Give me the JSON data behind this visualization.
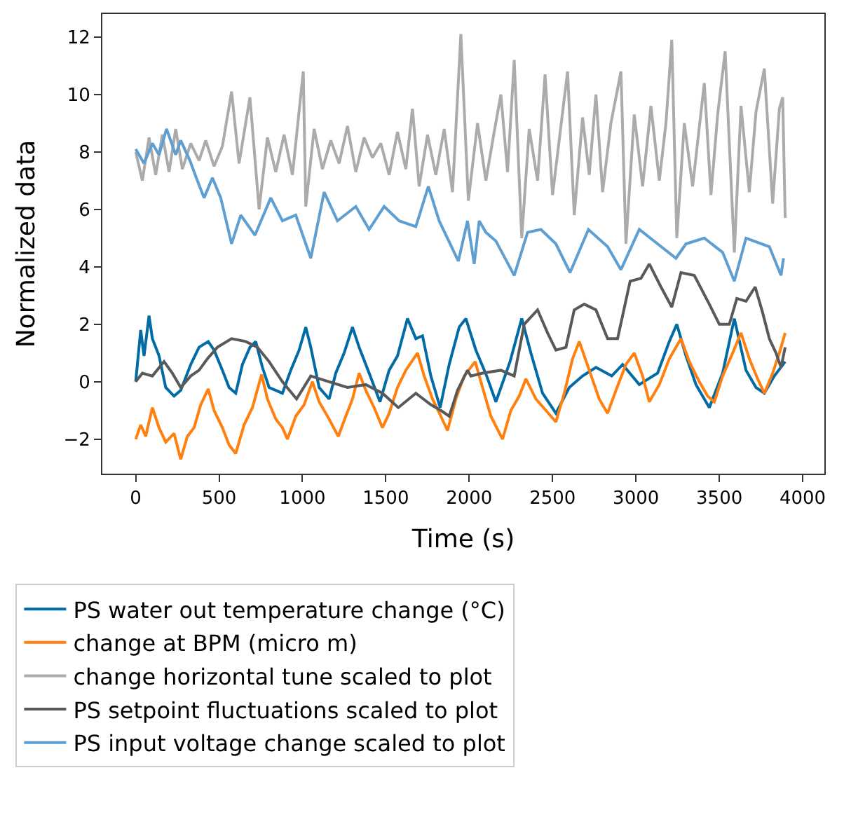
{
  "chart_data": {
    "type": "line",
    "xlabel": "Time (s)",
    "ylabel": "Normalized data",
    "xlim": [
      -200,
      4130
    ],
    "xticks": [
      0,
      500,
      1000,
      1500,
      2000,
      2500,
      3000,
      3500,
      4000
    ],
    "ylim": [
      -3.2,
      12.8
    ],
    "yticks": [
      -2,
      0,
      2,
      4,
      6,
      8,
      10,
      12
    ],
    "legend": "bottom",
    "marker": "none",
    "line_style": "solid",
    "series": [
      {
        "name": "PS water out temperature change (°C)",
        "color": "#006ba4",
        "x": [
          0,
          30,
          50,
          80,
          100,
          140,
          180,
          230,
          270,
          330,
          380,
          435,
          470,
          520,
          560,
          600,
          640,
          685,
          720,
          760,
          800,
          840,
          880,
          930,
          980,
          1020,
          1050,
          1100,
          1160,
          1200,
          1250,
          1300,
          1340,
          1400,
          1465,
          1520,
          1570,
          1630,
          1680,
          1720,
          1770,
          1826,
          1880,
          1940,
          1980,
          2040,
          2105,
          2160,
          2245,
          2315,
          2370,
          2440,
          2520,
          2600,
          2680,
          2760,
          2855,
          2920,
          3020,
          3130,
          3200,
          3245,
          3300,
          3360,
          3440,
          3520,
          3590,
          3660,
          3720,
          3770,
          3830,
          3895
        ],
        "values": [
          0.0,
          1.8,
          0.9,
          2.3,
          1.5,
          0.9,
          -0.2,
          -0.5,
          -0.3,
          0.6,
          1.2,
          1.4,
          1.1,
          0.4,
          -0.2,
          -0.4,
          0.6,
          1.2,
          1.4,
          0.5,
          -0.2,
          -0.3,
          -0.4,
          0.4,
          1.1,
          1.9,
          1.2,
          -0.2,
          -0.6,
          0.3,
          1.0,
          1.9,
          1.2,
          0.3,
          -0.7,
          0.4,
          0.9,
          2.2,
          1.5,
          1.6,
          0.2,
          -0.9,
          0.6,
          1.9,
          2.2,
          1.1,
          0.2,
          -0.7,
          0.7,
          2.2,
          1.0,
          -0.4,
          -1.1,
          -0.2,
          0.2,
          0.5,
          0.2,
          0.6,
          -0.1,
          0.3,
          1.4,
          2.0,
          0.9,
          -0.1,
          -0.9,
          0.3,
          2.2,
          0.4,
          -0.2,
          -0.4,
          0.2,
          0.7
        ]
      },
      {
        "name": "change at BPM (micro m)",
        "color": "#ff800e",
        "x": [
          0,
          30,
          60,
          100,
          140,
          180,
          230,
          270,
          310,
          350,
          390,
          435,
          470,
          520,
          560,
          600,
          650,
          700,
          755,
          790,
          840,
          880,
          910,
          960,
          1010,
          1060,
          1100,
          1160,
          1215,
          1260,
          1300,
          1340,
          1380,
          1430,
          1480,
          1520,
          1570,
          1620,
          1690,
          1730,
          1780,
          1830,
          1870,
          1920,
          1970,
          2036,
          2080,
          2130,
          2200,
          2250,
          2300,
          2340,
          2400,
          2460,
          2520,
          2570,
          2620,
          2660,
          2720,
          2780,
          2830,
          2880,
          2940,
          2990,
          3040,
          3080,
          3140,
          3200,
          3270,
          3320,
          3380,
          3430,
          3470,
          3520,
          3580,
          3630,
          3680,
          3730,
          3770,
          3820,
          3860,
          3895
        ],
        "values": [
          -2.0,
          -1.5,
          -1.9,
          -0.9,
          -1.6,
          -2.1,
          -1.8,
          -2.7,
          -1.9,
          -1.6,
          -0.8,
          -0.25,
          -1.0,
          -1.6,
          -2.2,
          -2.5,
          -1.5,
          -0.9,
          0.25,
          -0.6,
          -1.3,
          -1.6,
          -2.0,
          -1.2,
          -0.8,
          0.0,
          -0.7,
          -1.3,
          -1.9,
          -1.2,
          -0.6,
          0.3,
          -0.3,
          -0.9,
          -1.6,
          -1.1,
          -0.2,
          0.4,
          1.0,
          0.2,
          -0.6,
          -1.2,
          -1.7,
          -0.6,
          0.2,
          0.7,
          -0.2,
          -1.2,
          -2.0,
          -1.0,
          -0.5,
          0.1,
          -0.6,
          -1.0,
          -1.4,
          -0.4,
          0.8,
          1.4,
          0.4,
          -0.6,
          -1.1,
          -0.3,
          0.6,
          1.0,
          0.2,
          -0.7,
          -0.1,
          0.8,
          1.5,
          0.7,
          0.0,
          -0.5,
          -0.7,
          0.2,
          1.0,
          1.7,
          0.8,
          0.1,
          -0.4,
          0.3,
          1.0,
          1.7
        ]
      },
      {
        "name": "change horizontal tune scaled to plot",
        "color": "#ababab",
        "x": [
          0,
          40,
          80,
          120,
          160,
          200,
          240,
          280,
          330,
          380,
          420,
          470,
          520,
          575,
          620,
          685,
          740,
          790,
          840,
          890,
          940,
          1005,
          1020,
          1070,
          1120,
          1170,
          1220,
          1270,
          1320,
          1370,
          1420,
          1470,
          1520,
          1570,
          1620,
          1660,
          1700,
          1750,
          1800,
          1850,
          1900,
          1950,
          1995,
          2050,
          2100,
          2150,
          2190,
          2230,
          2270,
          2315,
          2360,
          2410,
          2455,
          2500,
          2550,
          2590,
          2630,
          2680,
          2720,
          2760,
          2800,
          2850,
          2910,
          2940,
          2990,
          3040,
          3090,
          3140,
          3180,
          3215,
          3245,
          3290,
          3340,
          3410,
          3450,
          3490,
          3535,
          3590,
          3630,
          3680,
          3720,
          3770,
          3820,
          3860,
          3880,
          3895
        ],
        "values": [
          8.0,
          7.0,
          8.5,
          7.2,
          8.6,
          7.3,
          8.8,
          7.4,
          8.3,
          7.7,
          8.4,
          7.5,
          8.2,
          10.1,
          7.6,
          9.9,
          6.0,
          8.5,
          7.3,
          8.6,
          7.2,
          10.8,
          6.1,
          8.8,
          7.4,
          8.4,
          7.6,
          8.9,
          7.3,
          8.5,
          7.8,
          8.3,
          7.2,
          8.7,
          7.4,
          9.5,
          6.8,
          8.6,
          7.2,
          8.8,
          6.6,
          12.1,
          6.3,
          9.0,
          7.0,
          8.7,
          10.0,
          7.3,
          11.2,
          5.0,
          8.8,
          7.0,
          10.7,
          6.5,
          8.9,
          10.8,
          5.8,
          9.2,
          7.2,
          10.0,
          6.6,
          9.0,
          10.8,
          4.8,
          9.3,
          6.8,
          9.6,
          7.0,
          9.0,
          11.9,
          5.0,
          9.0,
          6.8,
          10.4,
          6.5,
          9.3,
          11.5,
          4.5,
          9.6,
          6.6,
          9.4,
          10.9,
          6.2,
          9.5,
          9.9,
          5.7
        ]
      },
      {
        "name": "PS setpoint fluctuations scaled to plot",
        "color": "#595959",
        "x": [
          0,
          40,
          100,
          170,
          220,
          270,
          330,
          380,
          430,
          490,
          575,
          660,
          730,
          800,
          880,
          965,
          1050,
          1160,
          1270,
          1380,
          1480,
          1575,
          1680,
          1770,
          1830,
          1880,
          1930,
          1990,
          2010,
          2080,
          2190,
          2270,
          2330,
          2410,
          2470,
          2520,
          2580,
          2630,
          2690,
          2760,
          2830,
          2890,
          2965,
          3030,
          3080,
          3150,
          3215,
          3270,
          3350,
          3440,
          3500,
          3560,
          3605,
          3660,
          3715,
          3760,
          3800,
          3840,
          3870,
          3895
        ],
        "values": [
          0.0,
          0.3,
          0.2,
          0.7,
          0.3,
          -0.2,
          0.2,
          0.4,
          0.8,
          1.2,
          1.5,
          1.4,
          1.2,
          0.7,
          0.0,
          -0.6,
          0.2,
          0.0,
          -0.2,
          -0.1,
          -0.4,
          -0.9,
          -0.4,
          -0.8,
          -1.0,
          -1.2,
          -0.3,
          0.4,
          0.2,
          0.3,
          0.4,
          0.2,
          2.0,
          2.5,
          1.7,
          1.1,
          1.2,
          2.5,
          2.7,
          2.5,
          1.5,
          1.5,
          3.5,
          3.6,
          4.1,
          3.3,
          2.6,
          3.8,
          3.7,
          2.7,
          2.0,
          2.0,
          2.9,
          2.8,
          3.3,
          2.4,
          1.5,
          1.0,
          0.5,
          1.2
        ]
      },
      {
        "name": "PS input voltage change scaled to plot",
        "color": "#5f9ed1",
        "x": [
          0,
          50,
          100,
          140,
          185,
          240,
          270,
          325,
          370,
          410,
          460,
          510,
          575,
          630,
          715,
          810,
          880,
          960,
          1050,
          1130,
          1210,
          1320,
          1400,
          1490,
          1580,
          1680,
          1755,
          1820,
          1935,
          1990,
          2030,
          2060,
          2100,
          2160,
          2270,
          2350,
          2430,
          2520,
          2605,
          2715,
          2830,
          2910,
          3020,
          3130,
          3240,
          3300,
          3410,
          3520,
          3590,
          3660,
          3800,
          3870,
          3885
        ],
        "values": [
          8.1,
          7.6,
          8.3,
          7.9,
          8.8,
          7.9,
          8.4,
          7.7,
          7.0,
          6.4,
          7.1,
          6.4,
          4.8,
          5.8,
          5.1,
          6.4,
          5.6,
          5.8,
          4.3,
          6.6,
          5.6,
          6.1,
          5.3,
          6.1,
          5.6,
          5.4,
          6.8,
          5.6,
          4.2,
          5.6,
          4.1,
          5.6,
          5.2,
          4.9,
          3.7,
          5.2,
          5.3,
          4.8,
          3.8,
          5.3,
          4.7,
          3.9,
          5.3,
          4.8,
          4.3,
          4.8,
          5.0,
          4.5,
          3.5,
          5.0,
          4.7,
          3.7,
          4.3
        ]
      }
    ]
  }
}
